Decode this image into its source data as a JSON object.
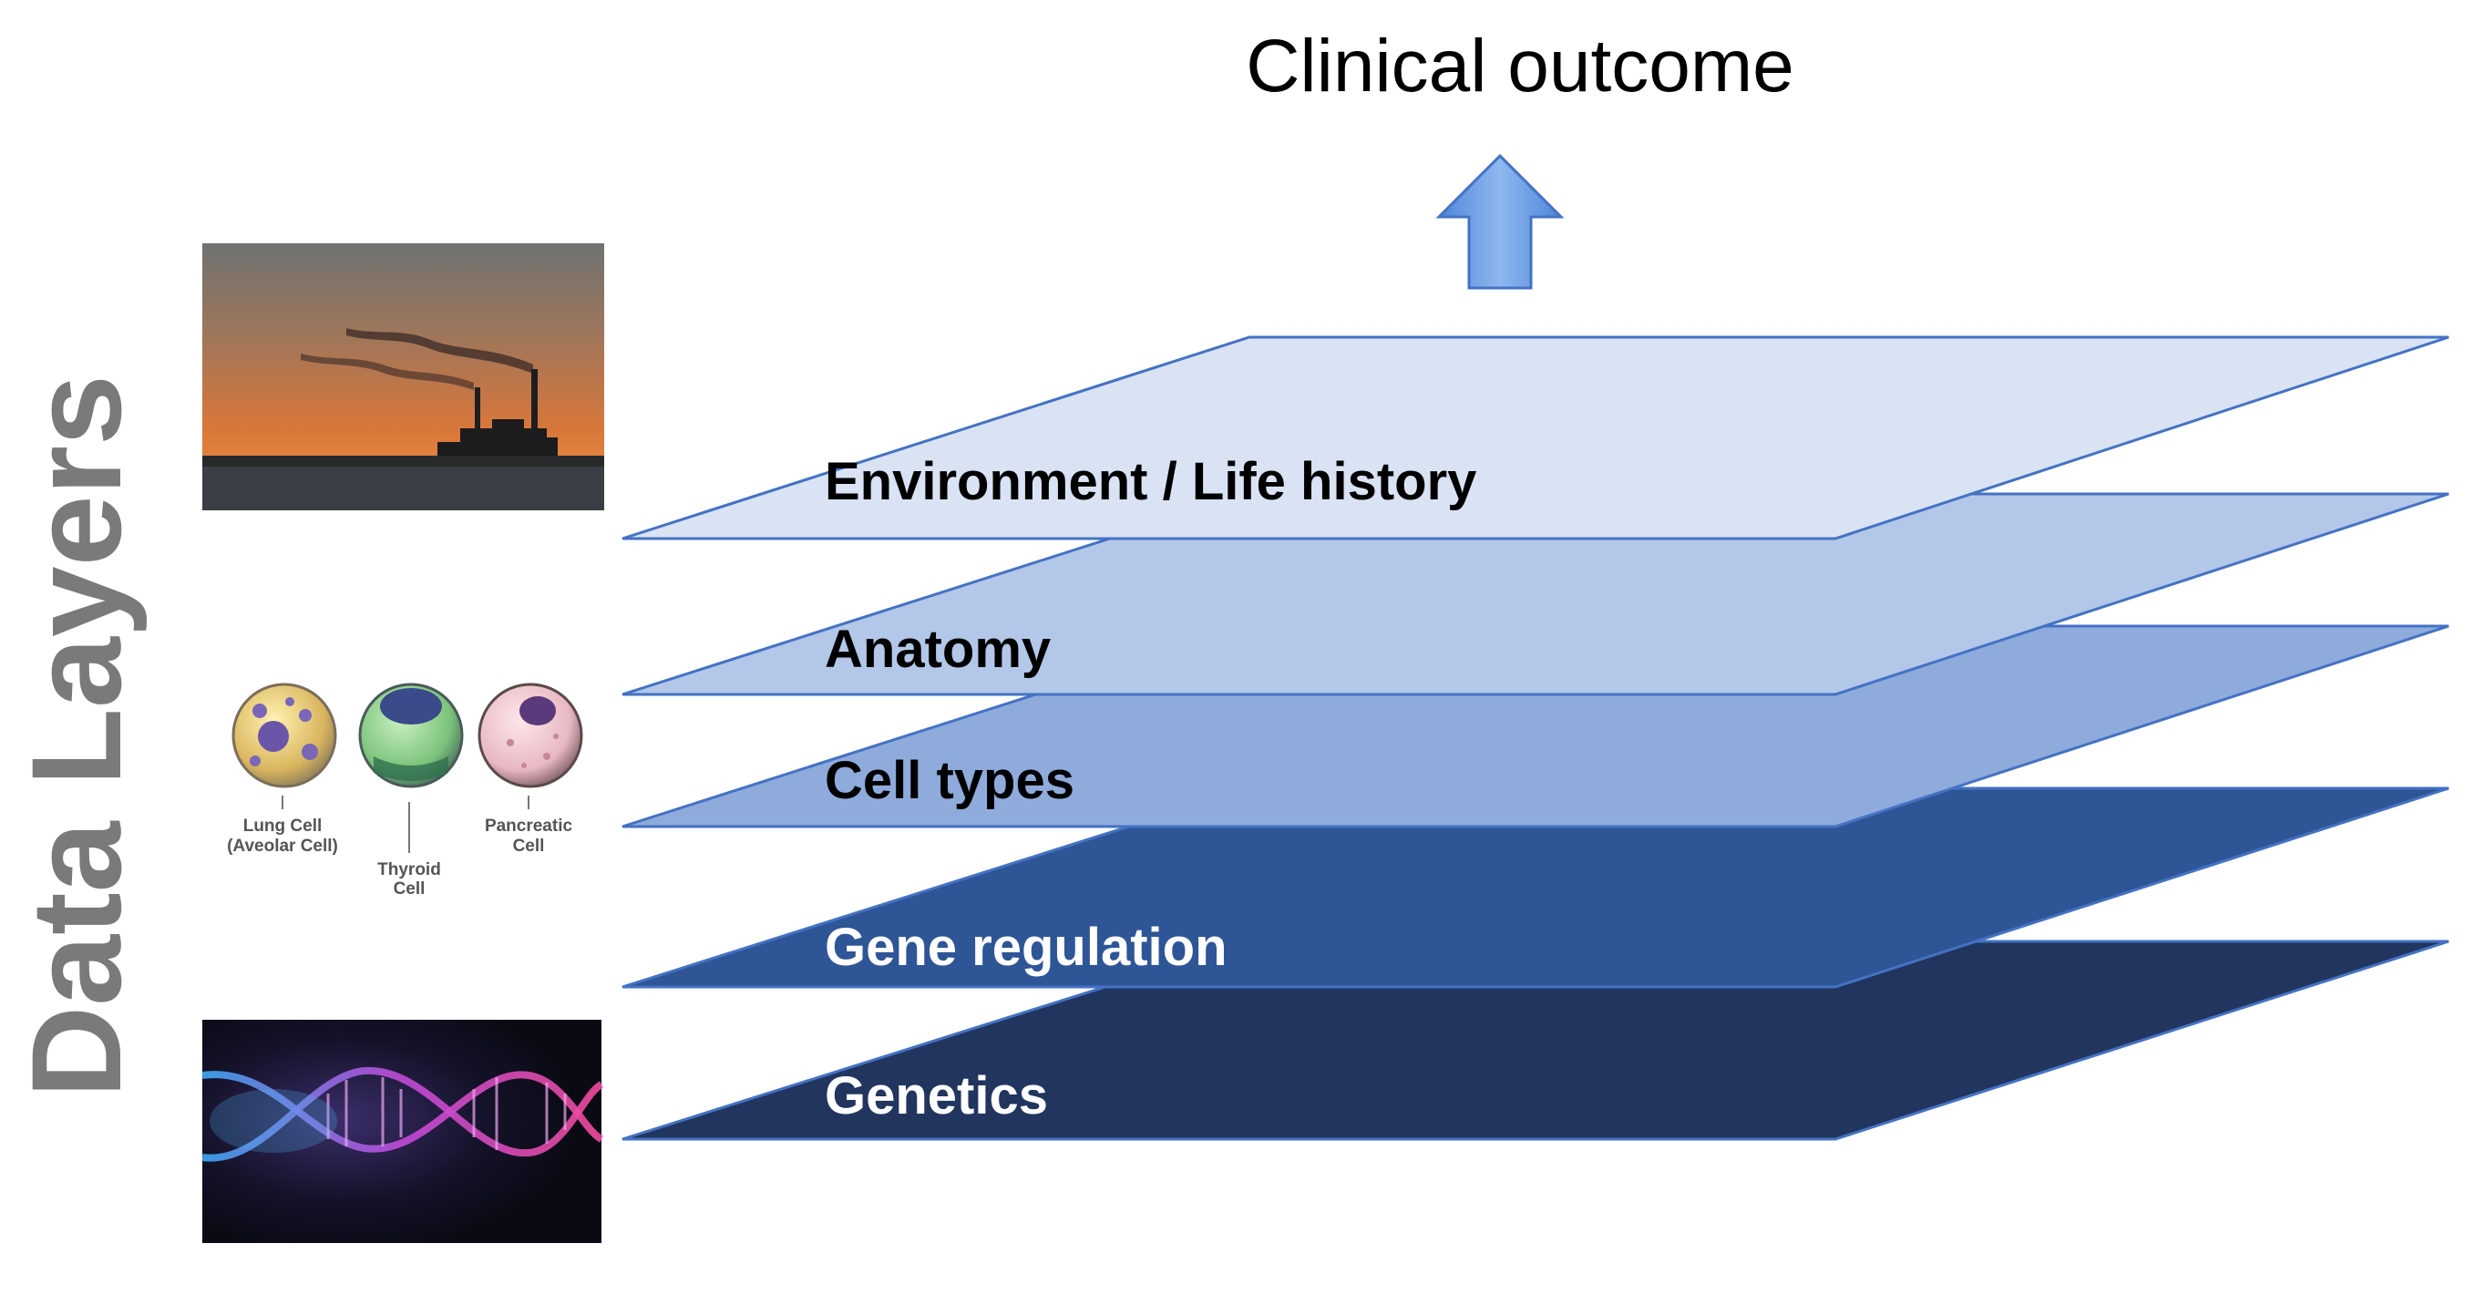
{
  "title": "Clinical outcome",
  "side_title": "Data Layers",
  "layers": [
    {
      "label": "Environment / Life history",
      "fill": "#dae3f4",
      "label_color": "#000000"
    },
    {
      "label": "Anatomy",
      "fill": "#b3c7e8",
      "label_color": "#000000"
    },
    {
      "label": "Cell types",
      "fill": "#8fabdc",
      "label_color": "#000000"
    },
    {
      "label": "Gene regulation",
      "fill": "#2e5596",
      "label_color": "#ffffff"
    },
    {
      "label": "Genetics",
      "fill": "#21355e",
      "label_color": "#ffffff"
    }
  ],
  "cell_images": {
    "lung": [
      "Lung Cell",
      "(Aveolar Cell)"
    ],
    "thyroid": [
      "Thyroid",
      "Cell"
    ],
    "pancreatic": [
      "Pancreatic",
      "Cell"
    ]
  },
  "colors": {
    "layer_stroke": "#4472c4",
    "arrow_fill": "#5b9bd5",
    "side_title": "#7a7a7a"
  },
  "icons": {
    "arrow": "up-arrow-icon",
    "photo_top": "factory-smokestack-photo",
    "photo_middle": "cell-types-illustration",
    "photo_bottom": "dna-helix-photo"
  }
}
